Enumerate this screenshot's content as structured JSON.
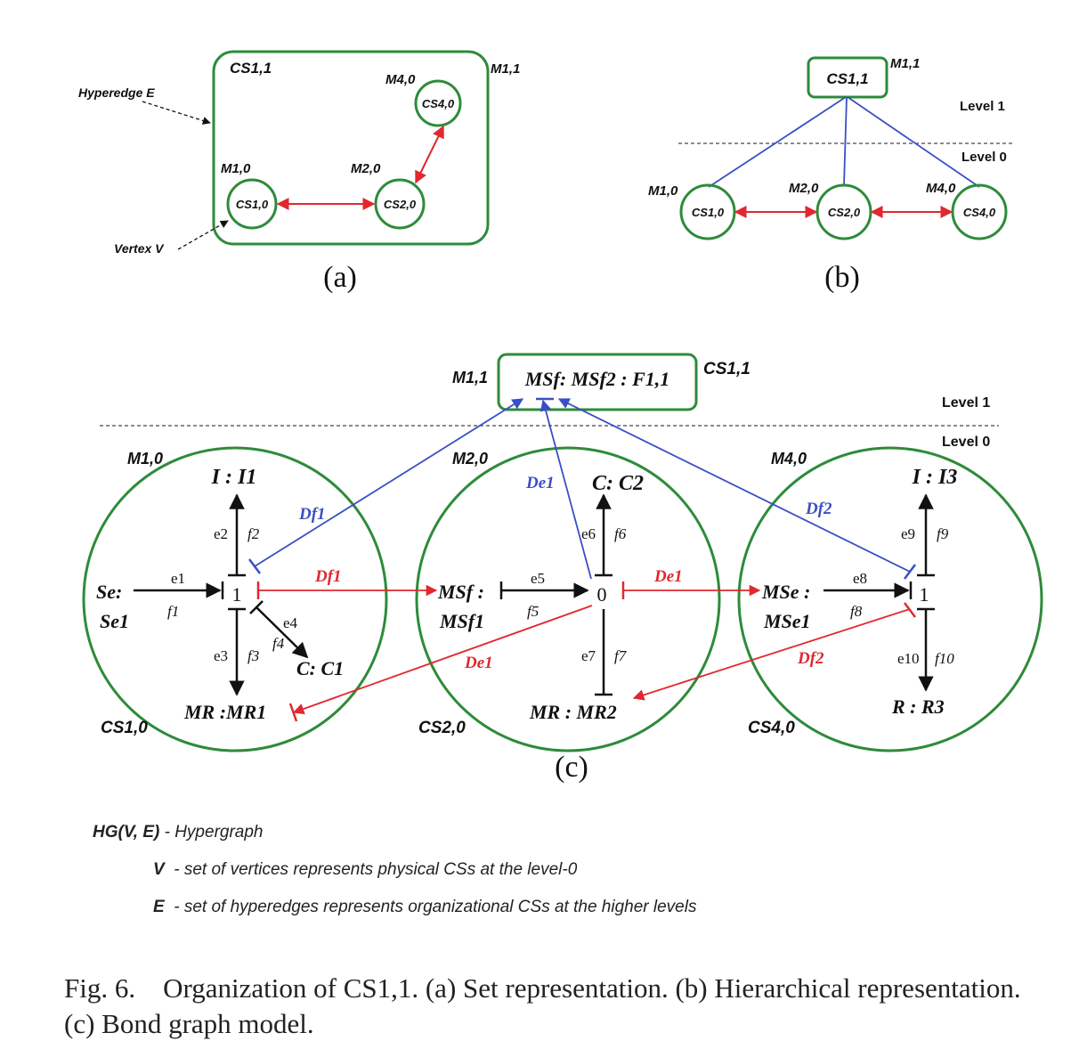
{
  "colors": {
    "green": "#2e8b3a",
    "red": "#e0282e",
    "blue": "#3a4fc4",
    "black": "#111111"
  },
  "panel_a": {
    "cs11": "CS1,1",
    "m11": "M1,1",
    "m40": "M4,0",
    "cs40": "CS4,0",
    "m10": "M1,0",
    "m20": "M2,0",
    "cs10": "CS1,0",
    "cs20": "CS2,0",
    "hyperedge": "Hyperedge E",
    "vertex": "Vertex V",
    "label": "(a)"
  },
  "panel_b": {
    "cs11": "CS1,1",
    "m11": "M1,1",
    "level1": "Level 1",
    "level0": "Level 0",
    "m10": "M1,0",
    "m20": "M2,0",
    "m40": "M4,0",
    "cs10": "CS1,0",
    "cs20": "CS2,0",
    "cs40": "CS4,0",
    "label": "(b)"
  },
  "panel_c": {
    "m11": "M1,1",
    "box": "MSf: MSf2 : F1,1",
    "cs11": "CS1,1",
    "level1": "Level 1",
    "level0": "Level 0",
    "m10": "M1,0",
    "m20": "M2,0",
    "m40": "M4,0",
    "cs10": "CS1,0",
    "cs20": "CS2,0",
    "cs40": "CS4,0",
    "c1": {
      "I": "I : I1",
      "se": "Se:",
      "se1": "Se1",
      "junction": "1",
      "C": "C: C1",
      "MR": "MR :MR1",
      "e1": "e1",
      "f1": "f1",
      "e2": "e2",
      "f2": "f2",
      "e3": "e3",
      "f3": "f3",
      "e4": "e4",
      "f4": "f4"
    },
    "c2": {
      "C": "C: C2",
      "msf": "MSf :",
      "msf1": "MSf1",
      "junction": "0",
      "MR": "MR : MR2",
      "e5": "e5",
      "f5": "f5",
      "e6": "e6",
      "f6": "f6",
      "e7": "e7",
      "f7": "f7"
    },
    "c3": {
      "I": "I : I3",
      "mse": "MSe :",
      "mse1": "MSe1",
      "junction": "1",
      "R": "R : R3",
      "e8": "e8",
      "f8": "f8",
      "e9": "e9",
      "f9": "f9",
      "e10": "e10",
      "f10": "f10"
    },
    "signals": {
      "df1_blue": "Df1",
      "df1_red": "Df1",
      "de1_blue": "De1",
      "de1_red_top": "De1",
      "de1_red_low": "De1",
      "df2_blue": "Df2",
      "df2_red": "Df2"
    },
    "label": "(c)"
  },
  "legend": {
    "hg": "HG(V, E)",
    "hg_desc": " - Hypergraph",
    "v": "V",
    "v_desc": "  - set of vertices represents physical CSs at the level-0",
    "e": "E",
    "e_desc": "  - set of hyperedges represents organizational CSs at the higher levels"
  },
  "caption": "Fig. 6.    Organization of CS1,1. (a) Set representation. (b) Hierarchical representation. (c) Bond graph model."
}
